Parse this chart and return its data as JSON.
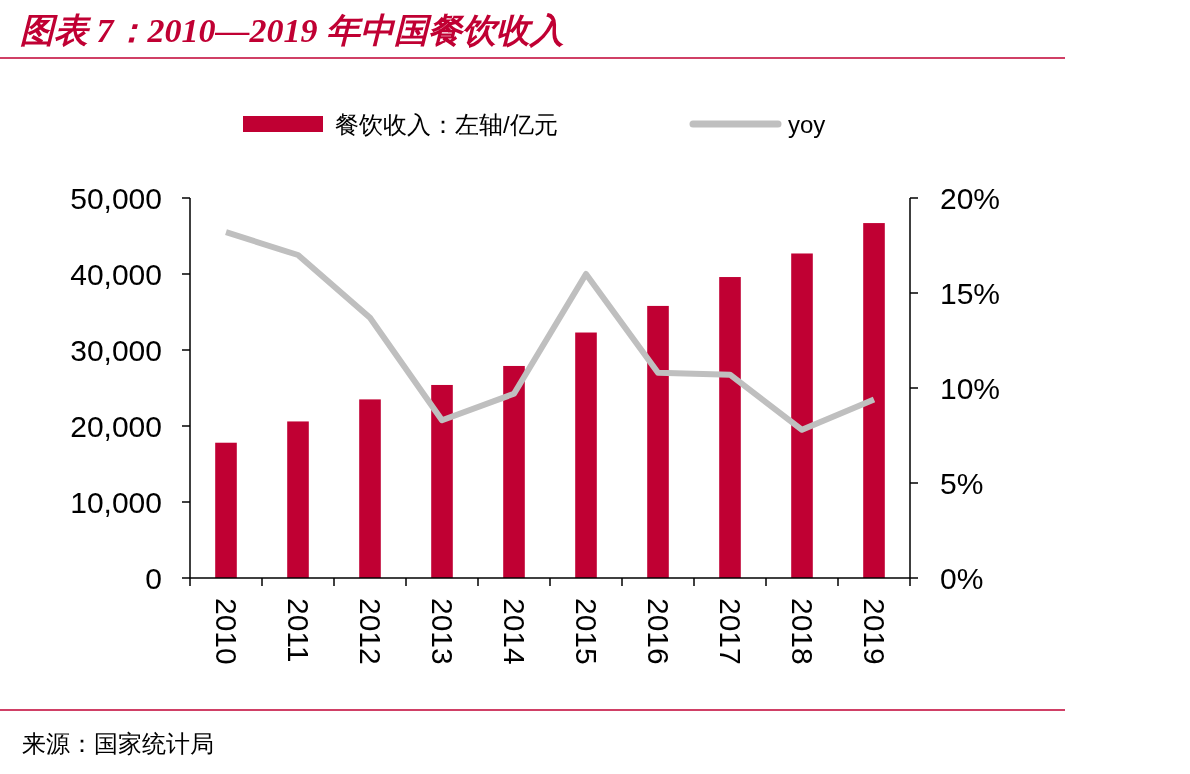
{
  "chart_data": {
    "type": "bar",
    "title": "图表 7：2010—2019 年中国餐饮收入",
    "categories": [
      "2010",
      "2011",
      "2012",
      "2013",
      "2014",
      "2015",
      "2016",
      "2017",
      "2018",
      "2019"
    ],
    "series": [
      {
        "name": "餐饮收入：左轴/亿元",
        "color": "#c00033",
        "values": [
          17800,
          20600,
          23500,
          25400,
          27900,
          32300,
          35800,
          39600,
          42700,
          46700
        ]
      },
      {
        "name": "yoy",
        "type": "line",
        "axis": "y2",
        "color": "#bfbfbf",
        "values": [
          18.2,
          17.0,
          13.7,
          8.3,
          9.7,
          16.0,
          10.8,
          10.7,
          7.8,
          9.4
        ]
      }
    ],
    "ylim": [
      0,
      50000
    ],
    "yticks": [
      {
        "value": 0,
        "label": "0"
      },
      {
        "value": 10000,
        "label": "10,000"
      },
      {
        "value": 20000,
        "label": "20,000"
      },
      {
        "value": 30000,
        "label": "30,000"
      },
      {
        "value": 40000,
        "label": "40,000"
      },
      {
        "value": 50000,
        "label": "50,000"
      }
    ],
    "y2lim": [
      0,
      20
    ],
    "y2ticks": [
      {
        "value": 0,
        "label": "0%"
      },
      {
        "value": 5,
        "label": "5%"
      },
      {
        "value": 10,
        "label": "10%"
      },
      {
        "value": 15,
        "label": "15%"
      },
      {
        "value": 20,
        "label": "20%"
      }
    ],
    "legend": "top",
    "grid": false,
    "marker": "none",
    "line_style": "solid",
    "annotations": [
      "来源：国家统计局"
    ]
  }
}
